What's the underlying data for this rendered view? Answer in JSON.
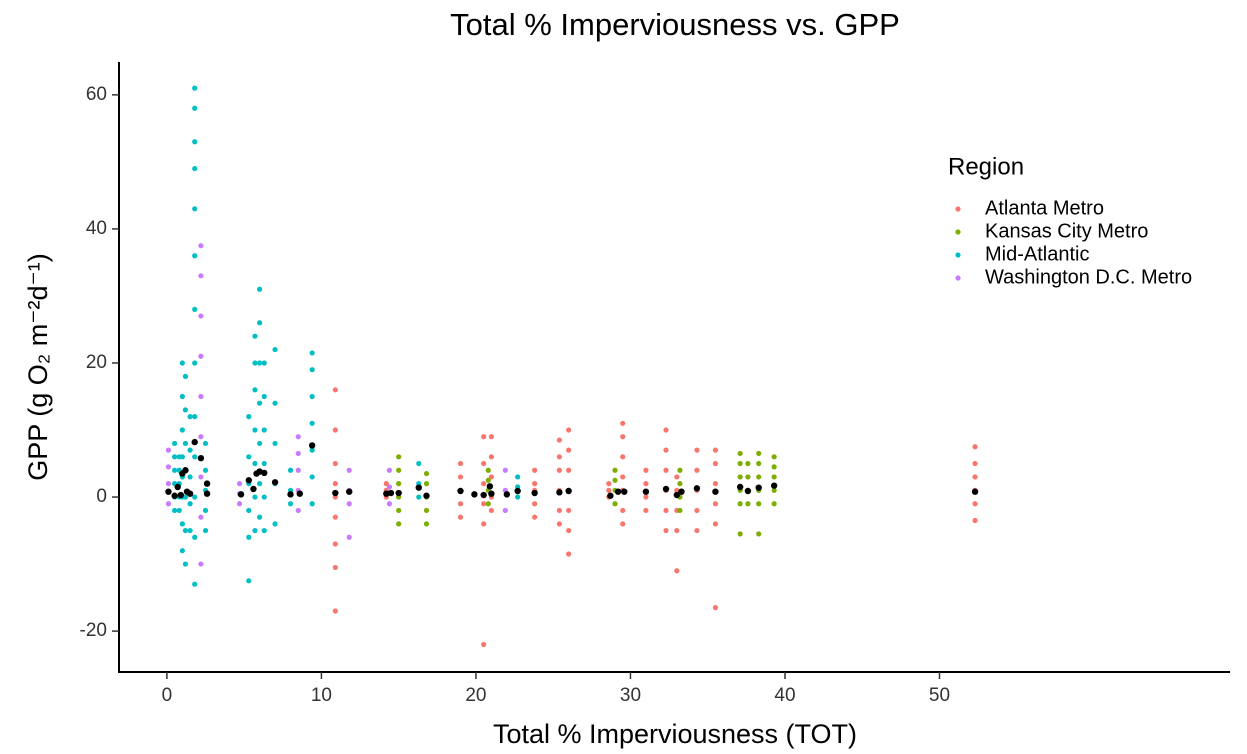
{
  "chart_data": {
    "type": "scatter",
    "title": "Total % Imperviousness vs. GPP",
    "x_label": "Total % Imperviousness (TOT)",
    "y_label": "GPP (g O₂ m⁻²d⁻¹)",
    "legend_title": "Region",
    "xlim": [
      -3.1,
      68.8
    ],
    "ylim": [
      -26.1,
      64.9
    ],
    "xticks": [
      0,
      10,
      20,
      30,
      40,
      50
    ],
    "yticks": [
      -20,
      0,
      20,
      40,
      60
    ],
    "series": [
      {
        "name": "Atlanta Metro",
        "color": "#F8766D",
        "x": [
          10.9,
          10.9,
          10.9,
          10.9,
          10.9,
          10.9,
          10.9,
          10.9,
          10.9,
          14.2,
          14.2,
          14.2,
          19,
          19,
          19,
          19,
          19,
          20.5,
          20.5,
          20.5,
          20.5,
          20.5,
          20.5,
          21,
          21,
          21,
          21,
          21,
          23.8,
          23.8,
          23.8,
          23.8,
          23.8,
          25.4,
          25.4,
          25.4,
          25.4,
          25.4,
          25.4,
          26,
          26,
          26,
          26,
          26,
          26,
          26,
          28.6,
          28.6,
          28.6,
          29.5,
          29.5,
          29.5,
          29.5,
          29.5,
          29.5,
          29.5,
          31,
          31,
          31,
          31,
          32.3,
          32.3,
          32.3,
          32.3,
          32.3,
          32.3,
          33,
          33,
          33,
          33,
          33,
          34.3,
          34.3,
          34.3,
          34.3,
          34.3,
          35.5,
          35.5,
          35.5,
          35.5,
          35.5,
          35.5,
          52.3,
          52.3,
          52.3,
          52.3,
          52.3,
          52.3
        ],
        "values": [
          -17,
          -10.5,
          -7,
          -3,
          0,
          2,
          5,
          10,
          16,
          0,
          1,
          2,
          -3,
          -1,
          1,
          3,
          5,
          -22,
          -4,
          -1,
          2,
          5,
          9,
          -2,
          0,
          3,
          6,
          9,
          -3,
          -1,
          1,
          2,
          4,
          -4,
          -2,
          1,
          4,
          6,
          8.5,
          -8.5,
          -5,
          -2,
          1,
          4,
          7,
          10,
          0,
          1,
          2,
          -4,
          -2,
          1,
          3,
          6,
          9,
          11,
          -2,
          0,
          2,
          4,
          -5,
          -2,
          1,
          4,
          7,
          10,
          -11,
          -5,
          -2,
          1,
          3,
          -5,
          -2,
          1,
          4,
          7,
          -16.5,
          -4,
          -1,
          2,
          5,
          7,
          -3.5,
          -1,
          1,
          3,
          5,
          7.5
        ]
      },
      {
        "name": "Kansas City Metro",
        "color": "#7CAE00",
        "x": [
          15,
          15,
          15,
          15,
          15,
          15,
          16.8,
          16.8,
          16.8,
          16.8,
          16.8,
          20.8,
          20.8,
          20.8,
          20.8,
          29,
          29,
          29,
          29,
          33.2,
          33.2,
          33.2,
          33.2,
          37.1,
          37.1,
          37.1,
          37.1,
          37.1,
          37.1,
          37.6,
          37.6,
          37.6,
          37.6,
          38.3,
          38.3,
          38.3,
          38.3,
          38.3,
          38.3,
          39.3,
          39.3,
          39.3,
          39.3,
          39.3
        ],
        "values": [
          -4,
          -2,
          0,
          2,
          4,
          6,
          -4,
          -2,
          0,
          2,
          3.5,
          -1,
          1,
          2.5,
          4,
          -1,
          1,
          2.5,
          4,
          -2,
          0,
          2,
          4,
          -5.5,
          -1,
          1,
          3,
          5,
          6.5,
          -1,
          1,
          3,
          5,
          -5.5,
          -1,
          1,
          3,
          5,
          6.5,
          -1,
          1,
          3,
          4.5,
          6
        ]
      },
      {
        "name": "Mid-Atlantic",
        "color": "#00BFC4",
        "x": [
          0.5,
          0.5,
          0.5,
          0.5,
          0.5,
          0.5,
          0.8,
          0.8,
          0.8,
          0.8,
          0.8,
          1,
          1,
          1,
          1,
          1,
          1,
          1,
          1,
          1.2,
          1.2,
          1.2,
          1.2,
          1.2,
          1.2,
          1.2,
          1.5,
          1.5,
          1.5,
          1.5,
          1.5,
          1.8,
          1.8,
          1.8,
          1.8,
          1.8,
          1.8,
          1.8,
          1.8,
          1.8,
          1.8,
          1.8,
          1.8,
          1.8,
          2.5,
          2.5,
          2.5,
          2.5,
          2.5,
          5.3,
          5.3,
          5.3,
          5.3,
          5.3,
          5.3,
          5.7,
          5.7,
          5.7,
          5.7,
          5.7,
          5.7,
          5.7,
          6,
          6,
          6,
          6,
          6,
          6,
          6,
          6.3,
          6.3,
          6.3,
          6.3,
          6.3,
          6.3,
          7,
          7,
          7,
          7,
          7,
          8,
          8,
          8,
          9.4,
          9.4,
          9.4,
          9.4,
          9.4,
          9.4,
          9.4,
          16.3,
          16.3,
          16.3,
          22.7,
          22.7,
          22.7
        ],
        "values": [
          -2,
          0,
          2,
          4,
          6,
          8,
          -2,
          0,
          2,
          4,
          6,
          -8,
          -4,
          0,
          3,
          6,
          10,
          15,
          20,
          -10,
          -5,
          0,
          4,
          8,
          13,
          18,
          -5,
          -1,
          3,
          7,
          12,
          -13,
          -6,
          0,
          6,
          12,
          20,
          28,
          36,
          43,
          49,
          53,
          58,
          61,
          -5,
          -2,
          1,
          4,
          8,
          -12.5,
          -6,
          -2,
          2,
          6,
          12,
          -5,
          0,
          5,
          10,
          16,
          20,
          24,
          -3,
          2,
          8,
          14,
          20,
          26,
          31,
          -5,
          0,
          5,
          10,
          15,
          20,
          -4,
          2,
          8,
          14,
          22,
          -1,
          1,
          4,
          -1,
          3,
          7,
          11,
          15,
          19,
          21.5,
          0,
          2,
          5,
          0,
          1.5,
          3
        ]
      },
      {
        "name": "Washington D.C. Metro",
        "color": "#C77CFF",
        "x": [
          0.1,
          0.1,
          0.1,
          0.1,
          2.2,
          2.2,
          2.2,
          2.2,
          2.2,
          2.2,
          2.2,
          2.2,
          2.2,
          4.7,
          4.7,
          4.7,
          8.5,
          8.5,
          8.5,
          8.5,
          8.5,
          11.8,
          11.8,
          11.8,
          11.8,
          14.4,
          14.4,
          14.4,
          21.9,
          21.9,
          21.9
        ],
        "values": [
          -1,
          2,
          4.5,
          7,
          -10,
          -3,
          3,
          9,
          15,
          21,
          27,
          33,
          37.5,
          -1,
          0.5,
          2,
          -2,
          1,
          4,
          6.5,
          9,
          -6,
          -1,
          1,
          4,
          -1,
          1.5,
          4,
          -2,
          1,
          4
        ]
      }
    ],
    "mean_points": {
      "color": "#000000",
      "x": [
        0.1,
        0.5,
        0.7,
        0.9,
        1.0,
        1.2,
        1.3,
        1.5,
        1.8,
        2.2,
        2.6,
        2.6,
        4.8,
        5.3,
        5.6,
        5.8,
        6.0,
        6.3,
        7.0,
        8.0,
        8.6,
        9.4,
        10.9,
        11.8,
        14.2,
        14.5,
        15.0,
        16.3,
        16.8,
        19.0,
        19.9,
        20.5,
        20.9,
        21.0,
        22.0,
        22.7,
        23.8,
        25.4,
        26.0,
        28.7,
        29.2,
        29.6,
        31.0,
        32.3,
        33.0,
        33.3,
        34.3,
        35.5,
        37.1,
        37.6,
        38.3,
        39.3,
        52.3
      ],
      "values": [
        0.8,
        0.2,
        1.5,
        0.3,
        3.5,
        4,
        0.8,
        0.5,
        8.2,
        5.8,
        2,
        0.5,
        0.4,
        2.5,
        1.2,
        3.5,
        3.8,
        3.6,
        2.2,
        0.4,
        0.5,
        7.7,
        0.6,
        0.8,
        0.5,
        0.6,
        0.6,
        1.4,
        0.2,
        0.9,
        0.4,
        0.3,
        1.6,
        0.5,
        0.4,
        0.9,
        0.6,
        0.7,
        0.9,
        0.2,
        0.8,
        0.8,
        0.8,
        1.2,
        0.3,
        0.8,
        1.3,
        0.8,
        1.5,
        0.9,
        1.4,
        1.7,
        0.8
      ]
    }
  }
}
